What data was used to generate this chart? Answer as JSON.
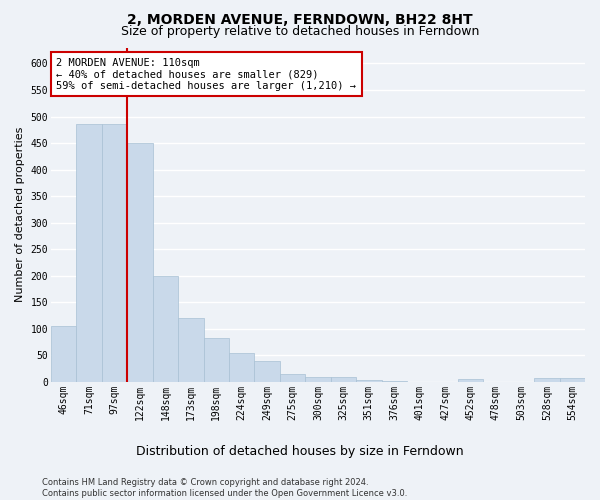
{
  "title": "2, MORDEN AVENUE, FERNDOWN, BH22 8HT",
  "subtitle": "Size of property relative to detached houses in Ferndown",
  "xlabel": "Distribution of detached houses by size in Ferndown",
  "ylabel": "Number of detached properties",
  "categories": [
    "46sqm",
    "71sqm",
    "97sqm",
    "122sqm",
    "148sqm",
    "173sqm",
    "198sqm",
    "224sqm",
    "249sqm",
    "275sqm",
    "300sqm",
    "325sqm",
    "351sqm",
    "376sqm",
    "401sqm",
    "427sqm",
    "452sqm",
    "478sqm",
    "503sqm",
    "528sqm",
    "554sqm"
  ],
  "values": [
    105,
    485,
    485,
    450,
    200,
    120,
    82,
    55,
    40,
    15,
    10,
    10,
    3,
    1,
    0,
    0,
    5,
    0,
    0,
    7,
    7
  ],
  "bar_color": "#c9d9ea",
  "bar_edge_color": "#a8c0d4",
  "red_line_color": "#cc0000",
  "annotation_text": "2 MORDEN AVENUE: 110sqm\n← 40% of detached houses are smaller (829)\n59% of semi-detached houses are larger (1,210) →",
  "annotation_box_color": "#ffffff",
  "annotation_box_edge_color": "#cc0000",
  "background_color": "#eef2f7",
  "plot_background_color": "#eef2f7",
  "grid_color": "#ffffff",
  "footer_text": "Contains HM Land Registry data © Crown copyright and database right 2024.\nContains public sector information licensed under the Open Government Licence v3.0.",
  "ylim": [
    0,
    630
  ],
  "yticks": [
    0,
    50,
    100,
    150,
    200,
    250,
    300,
    350,
    400,
    450,
    500,
    550,
    600
  ],
  "title_fontsize": 10,
  "subtitle_fontsize": 9,
  "tick_fontsize": 7,
  "ylabel_fontsize": 8,
  "xlabel_fontsize": 9,
  "annotation_fontsize": 7.5,
  "footer_fontsize": 6
}
